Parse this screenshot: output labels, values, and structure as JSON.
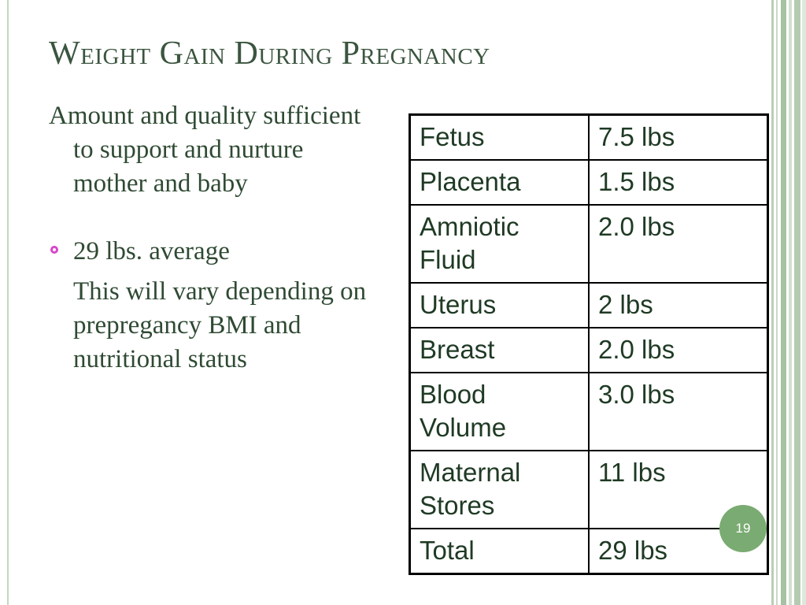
{
  "slide": {
    "title": "Weight Gain During Pregnancy",
    "intro": "Amount and quality sufficient to support and nurture mother and baby",
    "bullet": "29 lbs. average",
    "bullet_sub": "This will vary depending on prepregancy BMI and nutritional status",
    "page_number": "19"
  },
  "table": {
    "rows": [
      {
        "item": "Fetus",
        "amount": "7.5 lbs"
      },
      {
        "item": "Placenta",
        "amount": "1.5 lbs"
      },
      {
        "item": "Amniotic Fluid",
        "amount": "2.0 lbs"
      },
      {
        "item": "Uterus",
        "amount": "2 lbs"
      },
      {
        "item": "Breast",
        "amount": "2.0 lbs"
      },
      {
        "item": "Blood Volume",
        "amount": "3.0 lbs"
      },
      {
        "item": "Maternal Stores",
        "amount": "11 lbs"
      },
      {
        "item": "Total",
        "amount": "29 lbs"
      }
    ]
  },
  "colors": {
    "title": "#3b553f",
    "text": "#2f4a33",
    "bullet": "#d946c8",
    "page_badge": "#7aab72",
    "stripe_dark": "#9fbb9b",
    "stripe_light": "#d6e3d3"
  },
  "icons": {
    "bullet": "hollow-circle-bullet-icon"
  }
}
